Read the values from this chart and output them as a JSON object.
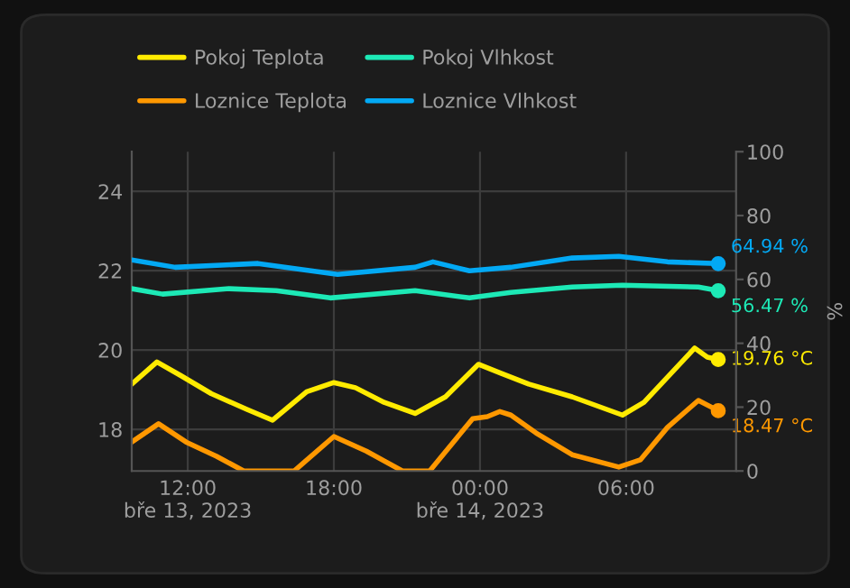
{
  "chart_data": {
    "type": "line",
    "xlim": [
      "2023-03-13T09:42",
      "2023-03-14T10:31"
    ],
    "xticks": [
      {
        "value": "2023-03-13T12:00",
        "label": "12:00\nbře 13, 2023"
      },
      {
        "value": "2023-03-13T18:00",
        "label": "18:00"
      },
      {
        "value": "2023-03-14T00:00",
        "label": "00:00\nbře 14, 2023"
      },
      {
        "value": "2023-03-14T06:00",
        "label": "06:00"
      }
    ],
    "ylim": [
      16.95,
      25
    ],
    "yticks": [
      18,
      20,
      22,
      24
    ],
    "y2lim": [
      0,
      100
    ],
    "y2ticks": [
      0,
      20,
      40,
      60,
      80,
      100
    ],
    "y2label": "%",
    "grid": true,
    "legend": "top",
    "line_style": "solid",
    "series": [
      {
        "name": "Pokoj Teplota",
        "color": "#ffeb00",
        "x": [
          "2023-03-13T09:42",
          "2023-03-13T10:44",
          "2023-03-13T11:42",
          "2023-03-13T12:58",
          "2023-03-13T14:26",
          "2023-03-13T15:29",
          "2023-03-13T16:53",
          "2023-03-13T18:00",
          "2023-03-13T18:53",
          "2023-03-13T20:04",
          "2023-03-13T21:20",
          "2023-03-13T22:35",
          "2023-03-13T23:56",
          "2023-03-14T00:53",
          "2023-03-14T02:00",
          "2023-03-14T03:47",
          "2023-03-14T05:51",
          "2023-03-14T06:44",
          "2023-03-14T08:49",
          "2023-03-14T09:20",
          "2023-03-14T09:47"
        ],
        "values": [
          19.14,
          19.7,
          19.36,
          18.9,
          18.5,
          18.23,
          18.95,
          19.18,
          19.05,
          18.68,
          18.4,
          18.82,
          19.64,
          19.41,
          19.14,
          18.82,
          18.36,
          18.68,
          20.05,
          19.82,
          19.76
        ],
        "value_labels": [
          null,
          null,
          null,
          null,
          null,
          null,
          null,
          null,
          null,
          null,
          null,
          null,
          null,
          null,
          null,
          null,
          null,
          null,
          null,
          null,
          "19.76 °C"
        ]
      },
      {
        "name": "Pokoj Vlhkost",
        "color": "#1de9b6",
        "axis": "y2",
        "x": [
          "2023-03-13T09:42",
          "2023-03-13T10:58",
          "2023-03-13T13:42",
          "2023-03-13T15:38",
          "2023-03-13T17:51",
          "2023-03-13T21:20",
          "2023-03-13T23:34",
          "2023-03-14T01:16",
          "2023-03-14T03:47",
          "2023-03-14T05:51",
          "2023-03-14T08:58",
          "2023-03-14T09:47"
        ],
        "values": [
          57.1,
          55.4,
          57.1,
          56.5,
          54.2,
          56.5,
          54.2,
          55.9,
          57.6,
          58.2,
          57.6,
          56.47
        ],
        "value_labels": [
          null,
          null,
          null,
          null,
          null,
          null,
          null,
          null,
          null,
          null,
          null,
          "56.47 %"
        ]
      },
      {
        "name": "Loznice Teplota",
        "color": "#ff9800",
        "x": [
          "2023-03-13T09:42",
          "2023-03-13T10:48",
          "2023-03-13T11:56",
          "2023-03-13T13:11",
          "2023-03-13T14:18",
          "2023-03-13T15:20",
          "2023-03-13T16:22",
          "2023-03-13T18:00",
          "2023-03-13T19:20",
          "2023-03-13T20:49",
          "2023-03-13T21:20",
          "2023-03-13T21:56",
          "2023-03-13T23:42",
          "2023-03-14T00:18",
          "2023-03-14T00:49",
          "2023-03-14T01:16",
          "2023-03-14T02:18",
          "2023-03-14T03:47",
          "2023-03-14T05:42",
          "2023-03-14T06:35",
          "2023-03-14T07:42",
          "2023-03-14T08:58",
          "2023-03-14T09:47"
        ],
        "values": [
          17.68,
          18.14,
          17.68,
          17.32,
          16.95,
          null,
          16.95,
          17.82,
          17.45,
          16.95,
          null,
          16.95,
          18.27,
          18.32,
          18.45,
          18.36,
          17.91,
          17.36,
          17.05,
          17.23,
          18.05,
          18.73,
          18.47
        ],
        "value_labels": [
          null,
          null,
          null,
          null,
          null,
          null,
          null,
          null,
          null,
          null,
          null,
          null,
          null,
          null,
          null,
          null,
          null,
          null,
          null,
          null,
          null,
          null,
          "18.47 °C"
        ]
      },
      {
        "name": "Loznice Vlhkost",
        "color": "#03a9f4",
        "axis": "y2",
        "x": [
          "2023-03-13T09:42",
          "2023-03-13T11:29",
          "2023-03-13T14:53",
          "2023-03-13T18:09",
          "2023-03-13T21:20",
          "2023-03-13T22:04",
          "2023-03-13T23:34",
          "2023-03-14T01:16",
          "2023-03-14T03:47",
          "2023-03-14T05:42",
          "2023-03-14T07:42",
          "2023-03-14T09:47"
        ],
        "values": [
          66.1,
          63.8,
          65.0,
          61.6,
          63.8,
          65.5,
          62.7,
          63.8,
          66.7,
          67.2,
          65.5,
          64.94
        ],
        "value_labels": [
          null,
          null,
          null,
          null,
          null,
          null,
          null,
          null,
          null,
          null,
          null,
          "64.94 %"
        ]
      }
    ]
  }
}
